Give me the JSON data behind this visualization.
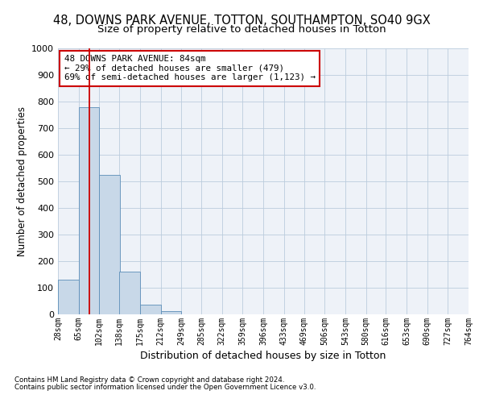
{
  "title_line1": "48, DOWNS PARK AVENUE, TOTTON, SOUTHAMPTON, SO40 9GX",
  "title_line2": "Size of property relative to detached houses in Totton",
  "xlabel": "Distribution of detached houses by size in Totton",
  "ylabel": "Number of detached properties",
  "bin_edges": [
    28,
    65,
    102,
    138,
    175,
    212,
    249,
    285,
    322,
    359,
    396,
    433,
    469,
    506,
    543,
    580,
    616,
    653,
    690,
    727,
    764
  ],
  "bar_heights": [
    130,
    780,
    525,
    160,
    37,
    13,
    0,
    0,
    0,
    0,
    0,
    0,
    0,
    0,
    0,
    0,
    0,
    0,
    0,
    0
  ],
  "bar_color": "#c8d8e8",
  "bar_edge_color": "#5b8db8",
  "vline_x": 84,
  "vline_color": "#cc0000",
  "ylim": [
    0,
    1000
  ],
  "yticks": [
    0,
    100,
    200,
    300,
    400,
    500,
    600,
    700,
    800,
    900,
    1000
  ],
  "grid_color": "#bbccdd",
  "bg_color": "#eef2f8",
  "annotation_text": "48 DOWNS PARK AVENUE: 84sqm\n← 29% of detached houses are smaller (479)\n69% of semi-detached houses are larger (1,123) →",
  "annotation_box_color": "#ffffff",
  "annotation_box_edge": "#cc0000",
  "footnote1": "Contains HM Land Registry data © Crown copyright and database right 2024.",
  "footnote2": "Contains public sector information licensed under the Open Government Licence v3.0.",
  "title_fontsize": 10.5,
  "subtitle_fontsize": 9.5,
  "tick_label_fontsize": 7,
  "annotation_fontsize": 7.8
}
